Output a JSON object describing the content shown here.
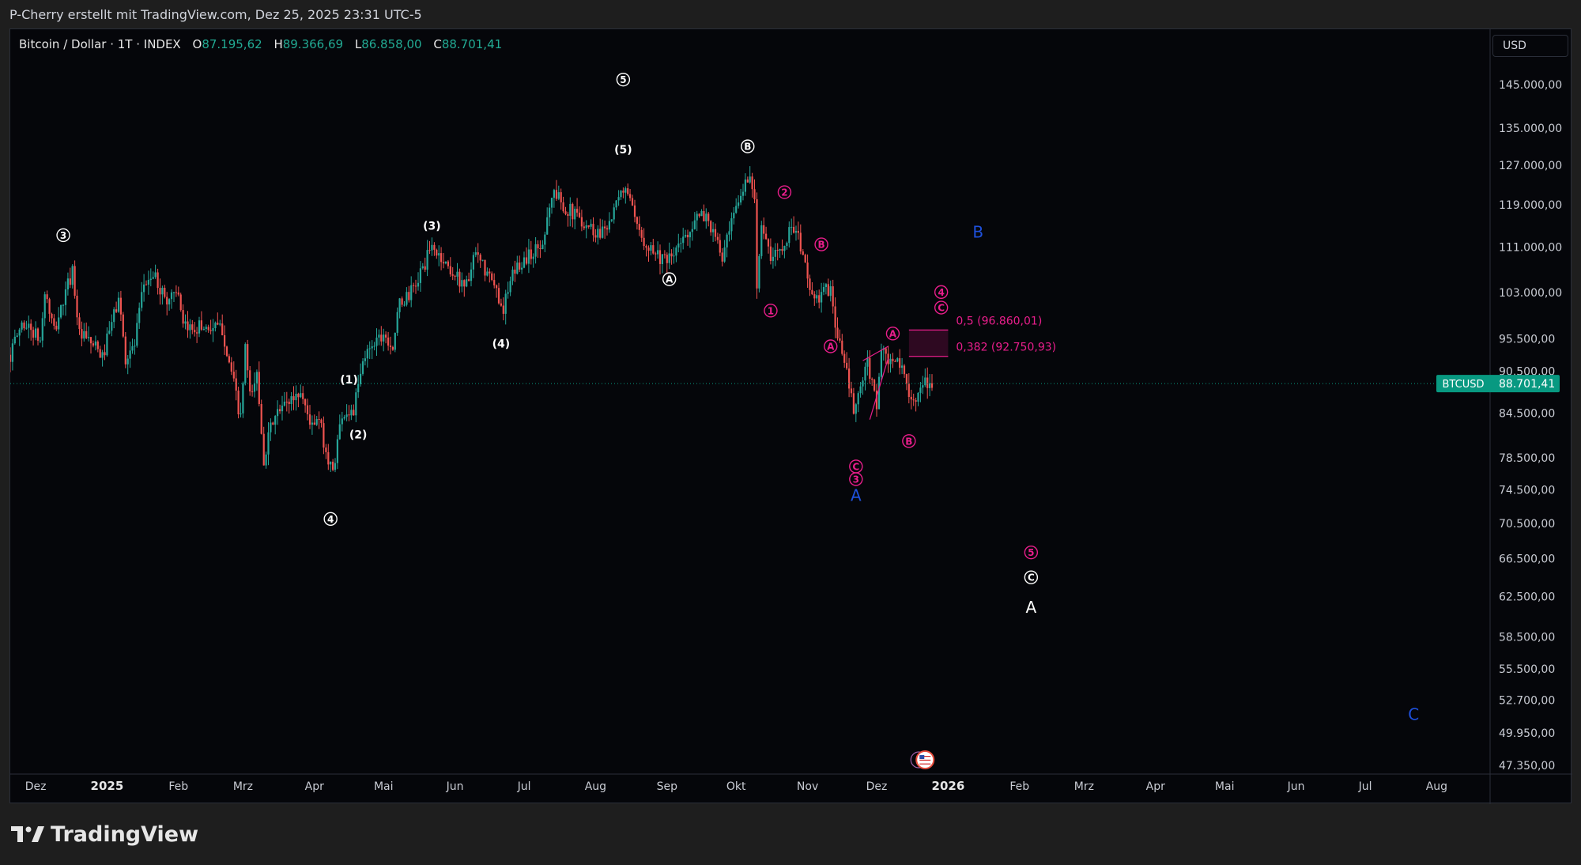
{
  "header": {
    "attribution": "P-Cherry erstellt mit TradingView.com, Dez 25, 2025 23:31 UTC-5"
  },
  "legend": {
    "symbol": "Bitcoin / Dollar · 1T · INDEX",
    "open_label": "O",
    "open_value": "87.195,62",
    "high_label": "H",
    "high_value": "89.366,69",
    "low_label": "L",
    "low_value": "86.858,00",
    "close_label": "C",
    "close_value": "88.701,41"
  },
  "currency": "USD",
  "footer": {
    "brand": "TradingView"
  },
  "colors": {
    "up": "#26a69a",
    "down": "#ef5350",
    "magenta": "#e91e8c",
    "blue": "#1e50dc",
    "white": "#ffffff",
    "price_tag": "#089981"
  },
  "chart_data": {
    "type": "candlestick",
    "ylog": true,
    "x_ticks": [
      {
        "label": "Dez",
        "date": "2024-12-01",
        "bold": false
      },
      {
        "label": "2025",
        "date": "2025-01-01",
        "bold": true
      },
      {
        "label": "Feb",
        "date": "2025-02-01",
        "bold": false
      },
      {
        "label": "Mrz",
        "date": "2025-03-01",
        "bold": false
      },
      {
        "label": "Apr",
        "date": "2025-04-01",
        "bold": false
      },
      {
        "label": "Mai",
        "date": "2025-05-01",
        "bold": false
      },
      {
        "label": "Jun",
        "date": "2025-06-01",
        "bold": false
      },
      {
        "label": "Jul",
        "date": "2025-07-01",
        "bold": false
      },
      {
        "label": "Aug",
        "date": "2025-08-01",
        "bold": false
      },
      {
        "label": "Sep",
        "date": "2025-09-01",
        "bold": false
      },
      {
        "label": "Okt",
        "date": "2025-10-01",
        "bold": false
      },
      {
        "label": "Nov",
        "date": "2025-11-01",
        "bold": false
      },
      {
        "label": "Dez",
        "date": "2025-12-01",
        "bold": false
      },
      {
        "label": "2026",
        "date": "2026-01-01",
        "bold": true
      },
      {
        "label": "Feb",
        "date": "2026-02-01",
        "bold": false
      },
      {
        "label": "Mrz",
        "date": "2026-03-01",
        "bold": false
      },
      {
        "label": "Apr",
        "date": "2026-04-01",
        "bold": false
      },
      {
        "label": "Mai",
        "date": "2026-05-01",
        "bold": false
      },
      {
        "label": "Jun",
        "date": "2026-06-01",
        "bold": false
      },
      {
        "label": "Jul",
        "date": "2026-07-01",
        "bold": false
      },
      {
        "label": "Aug",
        "date": "2026-08-01",
        "bold": false
      }
    ],
    "y_ticks": [
      {
        "label": "145.000,00",
        "value": 145000
      },
      {
        "label": "135.000,00",
        "value": 135000
      },
      {
        "label": "127.000,00",
        "value": 127000
      },
      {
        "label": "119.000,00",
        "value": 119000
      },
      {
        "label": "111.000,00",
        "value": 111000
      },
      {
        "label": "103.000,00",
        "value": 103000
      },
      {
        "label": "95.500,00",
        "value": 95500
      },
      {
        "label": "90.500,00",
        "value": 90500
      },
      {
        "label": "84.500,00",
        "value": 84500
      },
      {
        "label": "78.500,00",
        "value": 78500
      },
      {
        "label": "74.500,00",
        "value": 74500
      },
      {
        "label": "70.500,00",
        "value": 70500
      },
      {
        "label": "66.500,00",
        "value": 66500
      },
      {
        "label": "62.500,00",
        "value": 62500
      },
      {
        "label": "58.500,00",
        "value": 58500
      },
      {
        "label": "55.500,00",
        "value": 55500
      },
      {
        "label": "52.700,00",
        "value": 52700
      },
      {
        "label": "49.950,00",
        "value": 49950
      },
      {
        "label": "47.350,00",
        "value": 47350
      }
    ],
    "price_path": [
      [
        "2024-11-20",
        93000
      ],
      [
        "2024-11-25",
        98000
      ],
      [
        "2024-11-29",
        97000
      ],
      [
        "2024-12-03",
        95000
      ],
      [
        "2024-12-05",
        103000
      ],
      [
        "2024-12-09",
        96500
      ],
      [
        "2024-12-13",
        101500
      ],
      [
        "2024-12-17",
        107000
      ],
      [
        "2024-12-20",
        96000
      ],
      [
        "2024-12-26",
        94500
      ],
      [
        "2024-12-30",
        92500
      ],
      [
        "2025-01-06",
        102000
      ],
      [
        "2025-01-09",
        92500
      ],
      [
        "2025-01-13",
        94500
      ],
      [
        "2025-01-17",
        104500
      ],
      [
        "2025-01-21",
        106000
      ],
      [
        "2025-01-27",
        101500
      ],
      [
        "2025-01-31",
        104000
      ],
      [
        "2025-02-03",
        97000
      ],
      [
        "2025-02-10",
        97500
      ],
      [
        "2025-02-20",
        97000
      ],
      [
        "2025-02-25",
        88500
      ],
      [
        "2025-02-28",
        83500
      ],
      [
        "2025-03-02",
        94200
      ],
      [
        "2025-03-04",
        86500
      ],
      [
        "2025-03-07",
        90000
      ],
      [
        "2025-03-10",
        78500
      ],
      [
        "2025-03-14",
        83500
      ],
      [
        "2025-03-20",
        86000
      ],
      [
        "2025-03-26",
        87500
      ],
      [
        "2025-03-31",
        82500
      ],
      [
        "2025-04-03",
        83500
      ],
      [
        "2025-04-07",
        78000
      ],
      [
        "2025-04-09",
        76800
      ],
      [
        "2025-04-13",
        84500
      ],
      [
        "2025-04-18",
        84800
      ],
      [
        "2025-04-22",
        91500
      ],
      [
        "2025-04-25",
        94500
      ],
      [
        "2025-05-01",
        96500
      ],
      [
        "2025-05-05",
        94300
      ],
      [
        "2025-05-08",
        101000
      ],
      [
        "2025-05-14",
        103500
      ],
      [
        "2025-05-22",
        111000
      ],
      [
        "2025-05-27",
        108500
      ],
      [
        "2025-06-02",
        105500
      ],
      [
        "2025-06-06",
        104500
      ],
      [
        "2025-06-10",
        109500
      ],
      [
        "2025-06-17",
        104800
      ],
      [
        "2025-06-22",
        100500
      ],
      [
        "2025-06-27",
        107000
      ],
      [
        "2025-07-03",
        109500
      ],
      [
        "2025-07-09",
        111500
      ],
      [
        "2025-07-11",
        117500
      ],
      [
        "2025-07-14",
        121500
      ],
      [
        "2025-07-20",
        118000
      ],
      [
        "2025-07-25",
        116500
      ],
      [
        "2025-08-02",
        113500
      ],
      [
        "2025-08-08",
        116500
      ],
      [
        "2025-08-14",
        123000
      ],
      [
        "2025-08-19",
        114000
      ],
      [
        "2025-08-25",
        111000
      ],
      [
        "2025-09-01",
        108000
      ],
      [
        "2025-09-06",
        111000
      ],
      [
        "2025-09-13",
        116000
      ],
      [
        "2025-09-18",
        117000
      ],
      [
        "2025-09-25",
        109000
      ],
      [
        "2025-10-01",
        118000
      ],
      [
        "2025-10-06",
        124800
      ],
      [
        "2025-10-09",
        121500
      ],
      [
        "2025-10-10",
        105000
      ],
      [
        "2025-10-12",
        115000
      ],
      [
        "2025-10-16",
        108500
      ],
      [
        "2025-10-20",
        111000
      ],
      [
        "2025-10-26",
        115000
      ],
      [
        "2025-10-29",
        111000
      ],
      [
        "2025-11-04",
        101000
      ],
      [
        "2025-11-07",
        103000
      ],
      [
        "2025-11-11",
        103500
      ],
      [
        "2025-11-14",
        95500
      ],
      [
        "2025-11-17",
        92000
      ],
      [
        "2025-11-21",
        84500
      ],
      [
        "2025-11-24",
        88000
      ],
      [
        "2025-11-27",
        91500
      ],
      [
        "2025-12-01",
        86000
      ],
      [
        "2025-12-03",
        93500
      ],
      [
        "2025-12-08",
        91000
      ],
      [
        "2025-12-10",
        92500
      ],
      [
        "2025-12-14",
        88500
      ],
      [
        "2025-12-18",
        86000
      ],
      [
        "2025-12-22",
        88500
      ],
      [
        "2025-12-25",
        88701
      ]
    ],
    "current_price": {
      "symbol": "BTCUSD",
      "label": "88.701,41",
      "value": 88701.41
    },
    "fib_box": {
      "start": "2025-12-15",
      "end": "2026-01-01",
      "top": 96860.01,
      "bottom": 92750.93
    },
    "fib_levels": [
      {
        "text": "0,5 (96.860,01)",
        "value": 96860.01
      },
      {
        "text": "0,382 (92.750,93)",
        "value": 92750.93
      }
    ],
    "triangle_lines": [
      {
        "from": [
          "2025-11-25",
          92100
        ],
        "to": [
          "2025-12-06",
          94300
        ]
      },
      {
        "from": [
          "2025-11-28",
          83600
        ],
        "to": [
          "2025-12-06",
          92500
        ]
      }
    ],
    "wave_labels": [
      {
        "text": "3",
        "style": "circle",
        "color": "white",
        "date": "2024-12-13",
        "price": 113200
      },
      {
        "text": "5",
        "style": "circle",
        "color": "white",
        "date": "2025-08-13",
        "price": 146200
      },
      {
        "text": "(3)",
        "style": "paren",
        "color": "white",
        "date": "2025-05-22",
        "price": 115000
      },
      {
        "text": "(5)",
        "style": "paren",
        "color": "white",
        "date": "2025-08-13",
        "price": 130300
      },
      {
        "text": "B",
        "style": "circle",
        "color": "white",
        "date": "2025-10-06",
        "price": 131000
      },
      {
        "text": "A",
        "style": "circle",
        "color": "white",
        "date": "2025-09-02",
        "price": 105300
      },
      {
        "text": "(4)",
        "style": "paren",
        "color": "white",
        "date": "2025-06-21",
        "price": 94700
      },
      {
        "text": "(1)",
        "style": "paren",
        "color": "white",
        "date": "2025-04-16",
        "price": 89300
      },
      {
        "text": "(2)",
        "style": "paren",
        "color": "white",
        "date": "2025-04-20",
        "price": 81600
      },
      {
        "text": "4",
        "style": "circle",
        "color": "white",
        "date": "2025-04-08",
        "price": 71000
      },
      {
        "text": "2",
        "style": "circle",
        "color": "magenta",
        "date": "2025-10-22",
        "price": 121500
      },
      {
        "text": "B",
        "style": "circle",
        "color": "magenta",
        "date": "2025-11-07",
        "price": 111500
      },
      {
        "text": "1",
        "style": "circle",
        "color": "magenta",
        "date": "2025-10-16",
        "price": 100000
      },
      {
        "text": "A",
        "style": "circle",
        "color": "magenta",
        "date": "2025-11-11",
        "price": 94300
      },
      {
        "text": "A",
        "style": "circle",
        "color": "magenta",
        "date": "2025-12-08",
        "price": 96300
      },
      {
        "text": "4",
        "style": "circle",
        "color": "magenta",
        "date": "2025-12-29",
        "price": 103100
      },
      {
        "text": "C",
        "style": "circle",
        "color": "magenta",
        "date": "2025-12-29",
        "price": 100500
      },
      {
        "text": "B",
        "style": "circle",
        "color": "magenta",
        "date": "2025-12-15",
        "price": 80700
      },
      {
        "text": "C",
        "style": "circle",
        "color": "magenta",
        "date": "2025-11-22",
        "price": 77400
      },
      {
        "text": "3",
        "style": "circle",
        "color": "magenta",
        "date": "2025-11-22",
        "price": 75800
      },
      {
        "text": "5",
        "style": "circle",
        "color": "magenta",
        "date": "2026-02-06",
        "price": 67200
      },
      {
        "text": "C",
        "style": "circle",
        "color": "white",
        "date": "2026-02-06",
        "price": 64500
      },
      {
        "text": "A",
        "style": "plain",
        "color": "white",
        "date": "2026-02-06",
        "price": 61400
      },
      {
        "text": "A",
        "style": "plain",
        "color": "blue",
        "date": "2025-11-22",
        "price": 73800
      },
      {
        "text": "B",
        "style": "plain",
        "color": "blue",
        "date": "2026-01-14",
        "price": 113800
      },
      {
        "text": "C",
        "style": "plain",
        "color": "blue",
        "date": "2026-07-22",
        "price": 51500
      }
    ],
    "event_markers": [
      {
        "date": "2025-12-22",
        "icon": "us-flag-icon"
      }
    ]
  }
}
